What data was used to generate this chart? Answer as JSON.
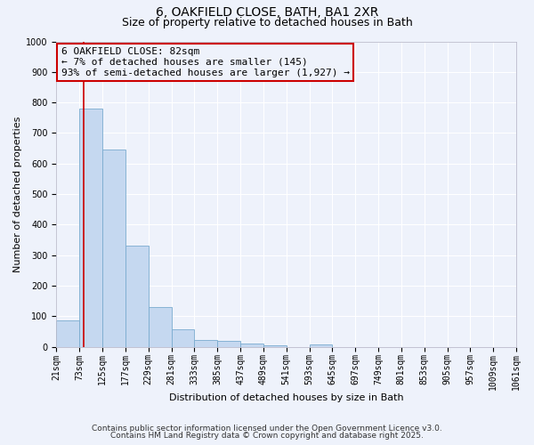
{
  "title_line1": "6, OAKFIELD CLOSE, BATH, BA1 2XR",
  "title_line2": "Size of property relative to detached houses in Bath",
  "xlabel": "Distribution of detached houses by size in Bath",
  "ylabel": "Number of detached properties",
  "bar_color": "#c5d8f0",
  "bar_edge_color": "#7aabcf",
  "background_color": "#eef2fb",
  "grid_color": "#ffffff",
  "annotation_box_color": "#cc0000",
  "red_line_color": "#cc0000",
  "bin_edges": [
    21,
    73,
    125,
    177,
    229,
    281,
    333,
    385,
    437,
    489,
    541,
    593,
    645,
    697,
    749,
    801,
    853,
    905,
    957,
    1009,
    1061
  ],
  "bar_heights": [
    85,
    780,
    645,
    330,
    130,
    57,
    22,
    18,
    10,
    5,
    0,
    8,
    0,
    0,
    0,
    0,
    0,
    0,
    0,
    0
  ],
  "property_size": 82,
  "ylim": [
    0,
    1000
  ],
  "yticks": [
    0,
    100,
    200,
    300,
    400,
    500,
    600,
    700,
    800,
    900,
    1000
  ],
  "annotation_text": "6 OAKFIELD CLOSE: 82sqm\n← 7% of detached houses are smaller (145)\n93% of semi-detached houses are larger (1,927) →",
  "footer_line1": "Contains HM Land Registry data © Crown copyright and database right 2025.",
  "footer_line2": "Contains public sector information licensed under the Open Government Licence v3.0.",
  "title_fontsize": 10,
  "subtitle_fontsize": 9,
  "xlabel_fontsize": 8,
  "ylabel_fontsize": 8,
  "tick_fontsize": 7,
  "annotation_fontsize": 8,
  "footer_fontsize": 6.5
}
